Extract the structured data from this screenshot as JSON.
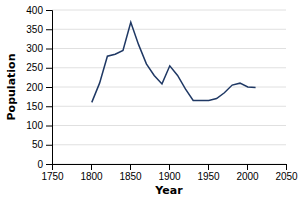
{
  "chart_data": {
    "type": "line",
    "x": [
      1801,
      1811,
      1821,
      1831,
      1841,
      1851,
      1861,
      1871,
      1881,
      1891,
      1901,
      1911,
      1921,
      1931,
      1951,
      1961,
      1971,
      1981,
      1991,
      2001,
      2011
    ],
    "values": [
      160,
      210,
      280,
      285,
      295,
      368,
      310,
      260,
      230,
      208,
      255,
      230,
      195,
      165,
      165,
      170,
      185,
      205,
      210,
      200,
      199
    ],
    "color": "#1F3864",
    "xlabel": "Year",
    "ylabel": "Population",
    "xlim": [
      1750,
      2050
    ],
    "ylim": [
      0,
      400
    ],
    "xticks": [
      1750,
      1800,
      1850,
      1900,
      1950,
      2000,
      2050
    ],
    "yticks": [
      0,
      50,
      100,
      150,
      200,
      250,
      300,
      350,
      400
    ],
    "grid": true
  }
}
